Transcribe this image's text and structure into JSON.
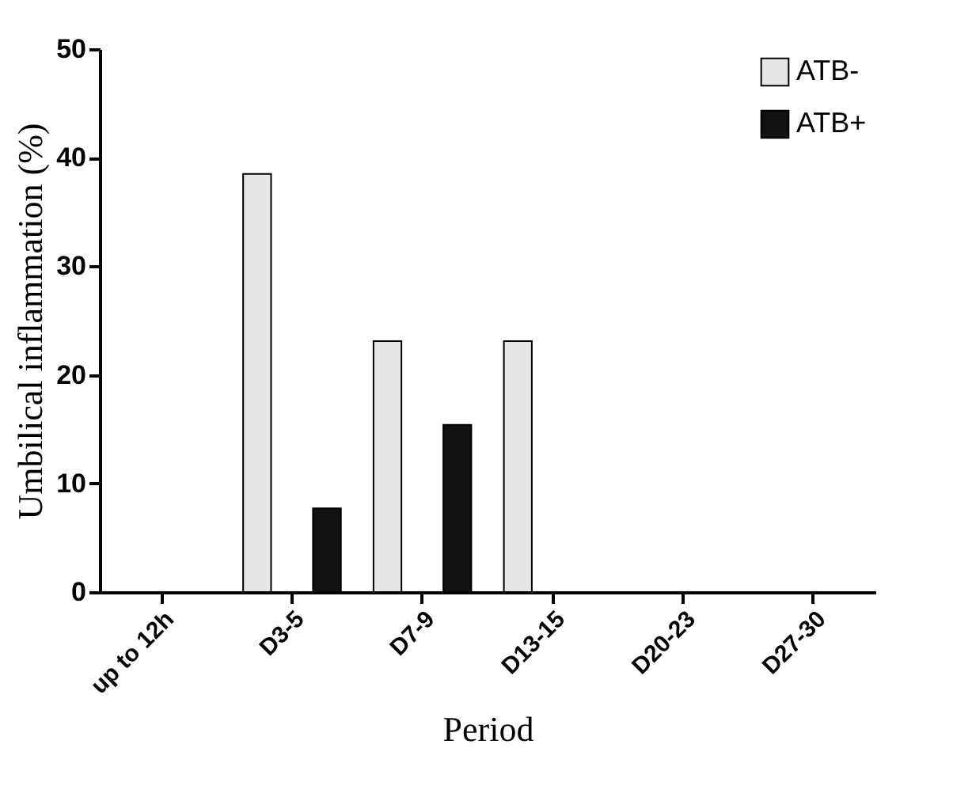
{
  "chart_data": {
    "type": "bar",
    "xlabel": "Period",
    "ylabel": "Umbilical inflammation (%)",
    "categories": [
      "up to 12h",
      "D3-5",
      "D7-9",
      "D13-15",
      "D20-23",
      "D27-30"
    ],
    "series": [
      {
        "name": "ATB-",
        "color": "#e6e6e6",
        "values": [
          0,
          38.5,
          23.1,
          23.1,
          0,
          0
        ]
      },
      {
        "name": "ATB+",
        "color": "#111111",
        "values": [
          0,
          7.7,
          15.4,
          0,
          0,
          0
        ]
      }
    ],
    "ylim": [
      0,
      50
    ],
    "yticks": [
      0,
      10,
      20,
      30,
      40,
      50
    ],
    "legend": "top right"
  }
}
